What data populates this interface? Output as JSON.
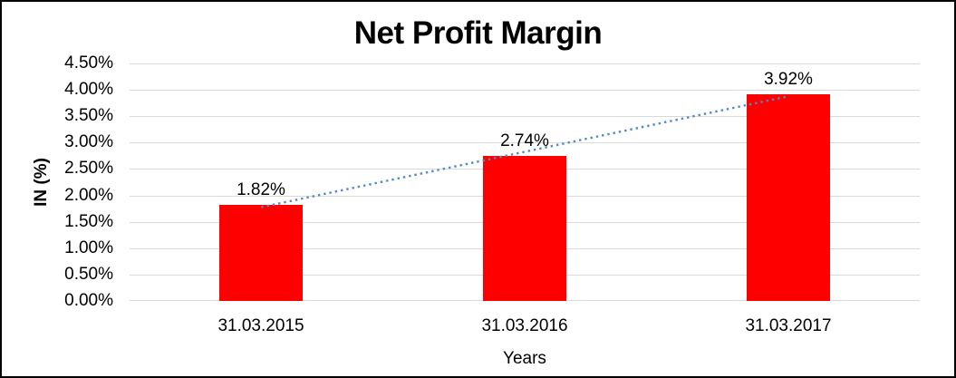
{
  "chart_data": {
    "type": "bar",
    "title": "Net Profit Margin",
    "xlabel": "Years",
    "ylabel": "IN (%)",
    "categories": [
      "31.03.2015",
      "31.03.2016",
      "31.03.2017"
    ],
    "values": [
      1.82,
      2.74,
      3.92
    ],
    "data_labels": [
      "1.82%",
      "2.74%",
      "3.92%"
    ],
    "ylim": [
      0,
      4.5
    ],
    "ytick_step": 0.5,
    "ytick_labels": [
      "4.50%",
      "4.00%",
      "3.50%",
      "3.00%",
      "2.50%",
      "2.00%",
      "1.50%",
      "1.00%",
      "0.50%",
      "0.00%"
    ],
    "grid": true,
    "legend": "none",
    "trendline": {
      "type": "linear",
      "style": "dotted"
    },
    "colors": {
      "bar": "#FF0000",
      "trendline": "#5089C8",
      "gridline": "#D9D9D9",
      "text": "#000000",
      "frame_border": "#000000",
      "background": "#FFFFFF"
    }
  }
}
